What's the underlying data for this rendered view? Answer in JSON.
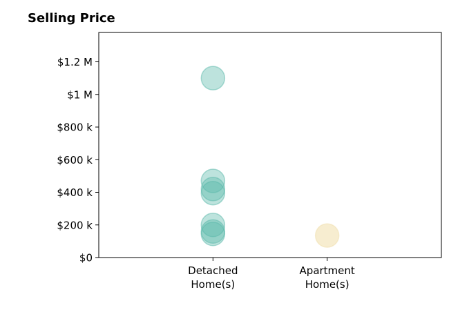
{
  "chart_data": {
    "type": "scatter",
    "title": "Selling Price",
    "xlabel": "",
    "ylabel": "",
    "categories": [
      "Detached\nHome(s)",
      "Apartment\nHome(s)"
    ],
    "y_ticks": [
      {
        "value": 0,
        "label": "$0"
      },
      {
        "value": 200000,
        "label": "$200 k"
      },
      {
        "value": 400000,
        "label": "$400 k"
      },
      {
        "value": 600000,
        "label": "$600 k"
      },
      {
        "value": 800000,
        "label": "$800 k"
      },
      {
        "value": 1000000,
        "label": "$1 M"
      },
      {
        "value": 1200000,
        "label": "$1.2 M"
      }
    ],
    "ylim": [
      0,
      1380000
    ],
    "xlim": [
      -1,
      2
    ],
    "grid": false,
    "series": [
      {
        "category_index": 0,
        "color": "#5ab8aa",
        "values": [
          1100000,
          470000,
          420000,
          395000,
          200000,
          160000,
          145000
        ]
      },
      {
        "category_index": 1,
        "color": "#f0deaa",
        "values": [
          135000
        ]
      }
    ]
  }
}
